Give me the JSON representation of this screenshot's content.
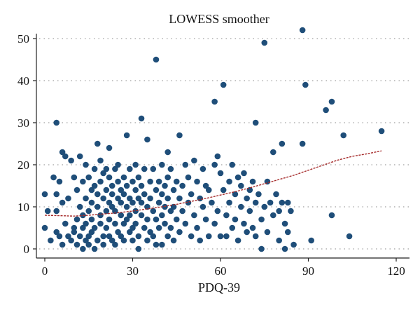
{
  "chart_data": {
    "type": "scatter",
    "title": "LOWESS smoother",
    "xlabel": "PDQ-39",
    "ylabel": "",
    "xlim": [
      0,
      120
    ],
    "ylim": [
      0,
      52
    ],
    "xticks": [
      0,
      30,
      60,
      90,
      120
    ],
    "yticks": [
      0,
      10,
      20,
      30,
      40,
      50
    ],
    "grid": "horizontal-dotted",
    "colors": {
      "points": "#1f4e79",
      "smoother": "#a52a2a"
    },
    "series": [
      {
        "kind": "scatter",
        "points": [
          [
            0,
            13
          ],
          [
            0,
            5
          ],
          [
            1,
            9
          ],
          [
            2,
            2
          ],
          [
            3,
            17
          ],
          [
            4,
            30
          ],
          [
            4,
            13
          ],
          [
            4,
            9
          ],
          [
            4,
            4
          ],
          [
            5,
            16
          ],
          [
            5,
            3
          ],
          [
            6,
            11
          ],
          [
            6,
            1
          ],
          [
            6,
            23
          ],
          [
            7,
            22
          ],
          [
            7,
            6
          ],
          [
            8,
            3
          ],
          [
            8,
            12
          ],
          [
            9,
            2
          ],
          [
            9,
            21
          ],
          [
            10,
            17
          ],
          [
            10,
            5
          ],
          [
            10,
            4
          ],
          [
            11,
            1
          ],
          [
            11,
            7
          ],
          [
            11,
            14
          ],
          [
            12,
            3
          ],
          [
            12,
            22
          ],
          [
            12,
            10
          ],
          [
            13,
            0
          ],
          [
            13,
            16
          ],
          [
            13,
            5
          ],
          [
            13,
            8
          ],
          [
            14,
            20
          ],
          [
            14,
            12
          ],
          [
            14,
            2
          ],
          [
            14,
            6
          ],
          [
            15,
            3
          ],
          [
            15,
            17
          ],
          [
            15,
            9
          ],
          [
            15,
            1
          ],
          [
            16,
            14
          ],
          [
            16,
            11
          ],
          [
            16,
            7
          ],
          [
            16,
            4
          ],
          [
            17,
            15
          ],
          [
            17,
            5
          ],
          [
            17,
            0
          ],
          [
            17,
            19
          ],
          [
            18,
            25
          ],
          [
            18,
            10
          ],
          [
            18,
            2
          ],
          [
            18,
            13
          ],
          [
            19,
            8
          ],
          [
            19,
            21
          ],
          [
            19,
            16
          ],
          [
            19,
            6
          ],
          [
            20,
            3
          ],
          [
            20,
            12
          ],
          [
            20,
            18
          ],
          [
            20,
            1
          ],
          [
            21,
            9
          ],
          [
            21,
            14
          ],
          [
            21,
            5
          ],
          [
            21,
            19
          ],
          [
            22,
            11
          ],
          [
            22,
            3
          ],
          [
            22,
            7
          ],
          [
            22,
            17
          ],
          [
            22,
            24
          ],
          [
            23,
            15
          ],
          [
            23,
            2
          ],
          [
            23,
            10
          ],
          [
            23,
            13
          ],
          [
            24,
            6
          ],
          [
            24,
            19
          ],
          [
            24,
            9
          ],
          [
            24,
            1
          ],
          [
            25,
            12
          ],
          [
            25,
            4
          ],
          [
            25,
            16
          ],
          [
            25,
            20
          ],
          [
            26,
            8
          ],
          [
            26,
            14
          ],
          [
            26,
            3
          ],
          [
            26,
            11
          ],
          [
            27,
            6
          ],
          [
            27,
            17
          ],
          [
            27,
            13
          ],
          [
            27,
            2
          ],
          [
            28,
            10
          ],
          [
            28,
            27
          ],
          [
            28,
            7
          ],
          [
            28,
            15
          ],
          [
            29,
            4
          ],
          [
            29,
            12
          ],
          [
            29,
            19
          ],
          [
            29,
            8
          ],
          [
            30,
            5
          ],
          [
            30,
            16
          ],
          [
            30,
            11
          ],
          [
            30,
            2
          ],
          [
            31,
            9
          ],
          [
            31,
            14
          ],
          [
            31,
            20
          ],
          [
            31,
            6
          ],
          [
            32,
            3
          ],
          [
            32,
            12
          ],
          [
            32,
            17
          ],
          [
            32,
            0
          ],
          [
            33,
            8
          ],
          [
            33,
            15
          ],
          [
            33,
            31
          ],
          [
            33,
            11
          ],
          [
            34,
            5
          ],
          [
            34,
            13
          ],
          [
            34,
            19
          ],
          [
            35,
            2
          ],
          [
            35,
            10
          ],
          [
            35,
            26
          ],
          [
            35,
            7
          ],
          [
            36,
            16
          ],
          [
            36,
            4
          ],
          [
            36,
            12
          ],
          [
            37,
            9
          ],
          [
            37,
            19
          ],
          [
            37,
            3
          ],
          [
            38,
            45
          ],
          [
            38,
            14
          ],
          [
            38,
            7
          ],
          [
            38,
            1
          ],
          [
            39,
            11
          ],
          [
            39,
            16
          ],
          [
            39,
            5
          ],
          [
            40,
            8
          ],
          [
            40,
            20
          ],
          [
            40,
            13
          ],
          [
            40,
            1
          ],
          [
            41,
            15
          ],
          [
            41,
            6
          ],
          [
            41,
            10
          ],
          [
            42,
            23
          ],
          [
            42,
            3
          ],
          [
            42,
            17
          ],
          [
            42,
            12
          ],
          [
            43,
            9
          ],
          [
            43,
            19
          ],
          [
            43,
            5
          ],
          [
            44,
            14
          ],
          [
            44,
            2
          ],
          [
            44,
            10
          ],
          [
            45,
            16
          ],
          [
            45,
            7
          ],
          [
            46,
            12
          ],
          [
            46,
            27
          ],
          [
            46,
            4
          ],
          [
            47,
            9
          ],
          [
            47,
            15
          ],
          [
            48,
            20
          ],
          [
            48,
            6
          ],
          [
            49,
            11
          ],
          [
            49,
            17
          ],
          [
            50,
            3
          ],
          [
            50,
            13
          ],
          [
            51,
            21
          ],
          [
            51,
            8
          ],
          [
            52,
            16
          ],
          [
            52,
            5
          ],
          [
            53,
            12
          ],
          [
            53,
            2
          ],
          [
            54,
            10
          ],
          [
            54,
            19
          ],
          [
            55,
            15
          ],
          [
            55,
            7
          ],
          [
            56,
            3
          ],
          [
            56,
            14
          ],
          [
            57,
            11
          ],
          [
            58,
            35
          ],
          [
            58,
            20
          ],
          [
            58,
            6
          ],
          [
            59,
            22
          ],
          [
            59,
            9
          ],
          [
            60,
            18
          ],
          [
            60,
            3
          ],
          [
            61,
            39
          ],
          [
            61,
            14
          ],
          [
            62,
            8
          ],
          [
            62,
            3
          ],
          [
            63,
            16
          ],
          [
            63,
            11
          ],
          [
            64,
            5
          ],
          [
            64,
            20
          ],
          [
            65,
            13
          ],
          [
            65,
            7
          ],
          [
            66,
            17
          ],
          [
            66,
            2
          ],
          [
            67,
            10
          ],
          [
            67,
            15
          ],
          [
            68,
            6
          ],
          [
            68,
            18
          ],
          [
            69,
            12
          ],
          [
            69,
            4
          ],
          [
            70,
            14
          ],
          [
            70,
            9
          ],
          [
            71,
            16
          ],
          [
            71,
            5
          ],
          [
            72,
            30
          ],
          [
            72,
            11
          ],
          [
            72,
            3
          ],
          [
            73,
            13
          ],
          [
            74,
            7
          ],
          [
            74,
            0
          ],
          [
            75,
            49
          ],
          [
            75,
            10
          ],
          [
            76,
            16
          ],
          [
            76,
            4
          ],
          [
            77,
            11
          ],
          [
            78,
            23
          ],
          [
            78,
            8
          ],
          [
            79,
            13
          ],
          [
            80,
            9
          ],
          [
            80,
            2
          ],
          [
            81,
            25
          ],
          [
            81,
            11
          ],
          [
            82,
            6
          ],
          [
            82,
            0
          ],
          [
            83,
            4
          ],
          [
            83,
            11
          ],
          [
            84,
            9
          ],
          [
            85,
            1
          ],
          [
            88,
            52
          ],
          [
            88,
            25
          ],
          [
            89,
            39
          ],
          [
            91,
            2
          ],
          [
            96,
            33
          ],
          [
            98,
            35
          ],
          [
            98,
            8
          ],
          [
            102,
            27
          ],
          [
            104,
            3
          ],
          [
            115,
            28
          ]
        ]
      },
      {
        "kind": "line",
        "style": "dashed",
        "points": [
          [
            0,
            8.0
          ],
          [
            5,
            7.9
          ],
          [
            10,
            7.8
          ],
          [
            15,
            8.0
          ],
          [
            20,
            8.3
          ],
          [
            25,
            8.6
          ],
          [
            30,
            9.0
          ],
          [
            35,
            9.5
          ],
          [
            40,
            10.0
          ],
          [
            45,
            10.6
          ],
          [
            50,
            11.3
          ],
          [
            55,
            12.0
          ],
          [
            60,
            12.8
          ],
          [
            65,
            13.6
          ],
          [
            70,
            14.5
          ],
          [
            75,
            15.5
          ],
          [
            80,
            16.5
          ],
          [
            85,
            17.5
          ],
          [
            90,
            18.7
          ],
          [
            95,
            19.9
          ],
          [
            100,
            21.1
          ],
          [
            105,
            22.0
          ],
          [
            110,
            22.6
          ],
          [
            115,
            23.3
          ]
        ]
      }
    ]
  }
}
